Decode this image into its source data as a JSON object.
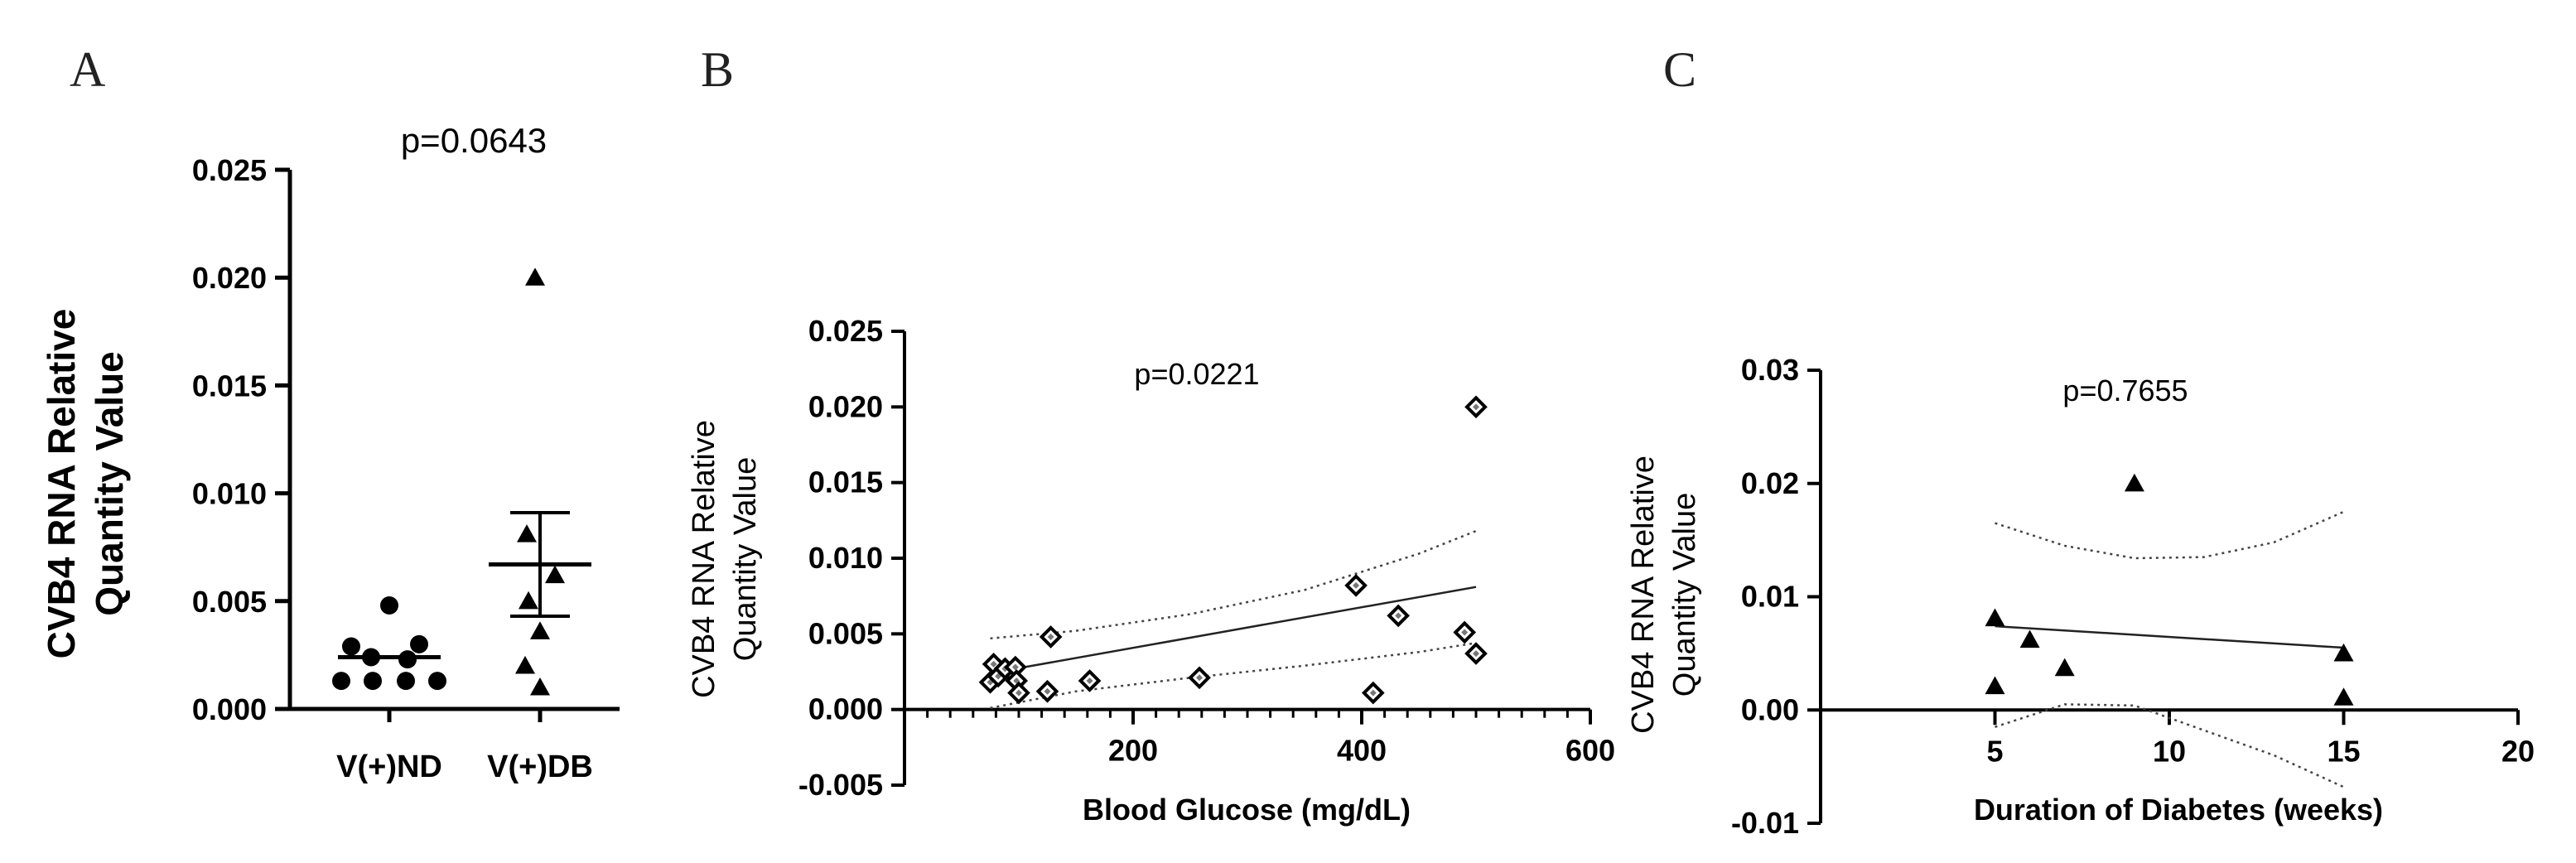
{
  "chart_data": [
    {
      "panel": "A",
      "type": "scatter",
      "title": "p=0.0643",
      "ylabel": "CVB4 RNA Relative Quantity Value",
      "ylim": [
        0,
        0.025
      ],
      "yticks": [
        "0.000",
        "0.005",
        "0.010",
        "0.015",
        "0.020",
        "0.025"
      ],
      "categories": [
        "V(+)ND",
        "V(+)DB"
      ],
      "series": [
        {
          "name": "V(+)ND",
          "marker": "circle",
          "values": [
            0.0048,
            0.0029,
            0.003,
            0.0024,
            0.0023,
            0.0013,
            0.0013,
            0.0013,
            0.0013
          ],
          "mean": 0.0024
        },
        {
          "name": "V(+)DB",
          "marker": "triangle",
          "values": [
            0.02,
            0.0081,
            0.0062,
            0.005,
            0.0036,
            0.002,
            0.001
          ],
          "mean": 0.0067,
          "sem": [
            0.0043,
            0.0091
          ]
        }
      ]
    },
    {
      "panel": "B",
      "type": "scatter",
      "title": "p=0.0221",
      "xlabel": "Blood Glucose (mg/dL)",
      "ylabel": "CVB4 RNA Relative Quantity Value",
      "xlim": [
        0,
        600
      ],
      "ylim": [
        -0.005,
        0.025
      ],
      "xticks": [
        "200",
        "400",
        "600"
      ],
      "yticks": [
        "-0.005",
        "0.000",
        "0.005",
        "0.010",
        "0.015",
        "0.020",
        "0.025"
      ],
      "marker": "diamond",
      "points": [
        {
          "x": 75,
          "y": 0.0018
        },
        {
          "x": 78,
          "y": 0.003
        },
        {
          "x": 82,
          "y": 0.0022
        },
        {
          "x": 88,
          "y": 0.0027
        },
        {
          "x": 97,
          "y": 0.0028
        },
        {
          "x": 98,
          "y": 0.0019
        },
        {
          "x": 100,
          "y": 0.0011
        },
        {
          "x": 125,
          "y": 0.0012
        },
        {
          "x": 128,
          "y": 0.0048
        },
        {
          "x": 162,
          "y": 0.0019
        },
        {
          "x": 258,
          "y": 0.0021
        },
        {
          "x": 395,
          "y": 0.0082
        },
        {
          "x": 410,
          "y": 0.0011
        },
        {
          "x": 432,
          "y": 0.0062
        },
        {
          "x": 490,
          "y": 0.0051
        },
        {
          "x": 500,
          "y": 0.0037
        },
        {
          "x": 500,
          "y": 0.02
        }
      ],
      "regression": {
        "x": [
          75,
          500
        ],
        "y": [
          0.0024,
          0.0081
        ]
      },
      "ci_upper": {
        "x": [
          75,
          150,
          250,
          350,
          450,
          500
        ],
        "y": [
          0.0047,
          0.0052,
          0.0063,
          0.0079,
          0.0103,
          0.0118
        ]
      },
      "ci_lower": {
        "x": [
          75,
          150,
          250,
          350,
          450,
          500
        ],
        "y": [
          0.0001,
          0.0012,
          0.0021,
          0.0029,
          0.0038,
          0.0044
        ]
      }
    },
    {
      "panel": "C",
      "type": "scatter",
      "title": "p=0.7655",
      "xlabel": "Duration of Diabetes (weeks)",
      "ylabel": "CVB4 RNA Relative Quantity Value",
      "xlim": [
        0,
        20
      ],
      "ylim": [
        -0.01,
        0.03
      ],
      "xticks": [
        "5",
        "10",
        "15",
        "20"
      ],
      "yticks": [
        "-0.01",
        "0.00",
        "0.01",
        "0.02",
        "0.03"
      ],
      "marker": "triangle",
      "points": [
        {
          "x": 5,
          "y": 0.0081
        },
        {
          "x": 5,
          "y": 0.0021
        },
        {
          "x": 6,
          "y": 0.0062
        },
        {
          "x": 7,
          "y": 0.0037
        },
        {
          "x": 9,
          "y": 0.02
        },
        {
          "x": 15,
          "y": 0.005
        },
        {
          "x": 15,
          "y": 0.0011
        }
      ],
      "regression": {
        "x": [
          5,
          15
        ],
        "y": [
          0.0074,
          0.0055
        ]
      },
      "ci_upper": {
        "x": [
          5,
          7,
          9,
          11,
          13,
          15
        ],
        "y": [
          0.0165,
          0.0145,
          0.0134,
          0.0135,
          0.0148,
          0.0175
        ]
      },
      "ci_lower": {
        "x": [
          5,
          7,
          9,
          11,
          13,
          15
        ],
        "y": [
          -0.0015,
          0.0005,
          0.0004,
          -0.0018,
          -0.004,
          -0.0068
        ]
      }
    }
  ]
}
